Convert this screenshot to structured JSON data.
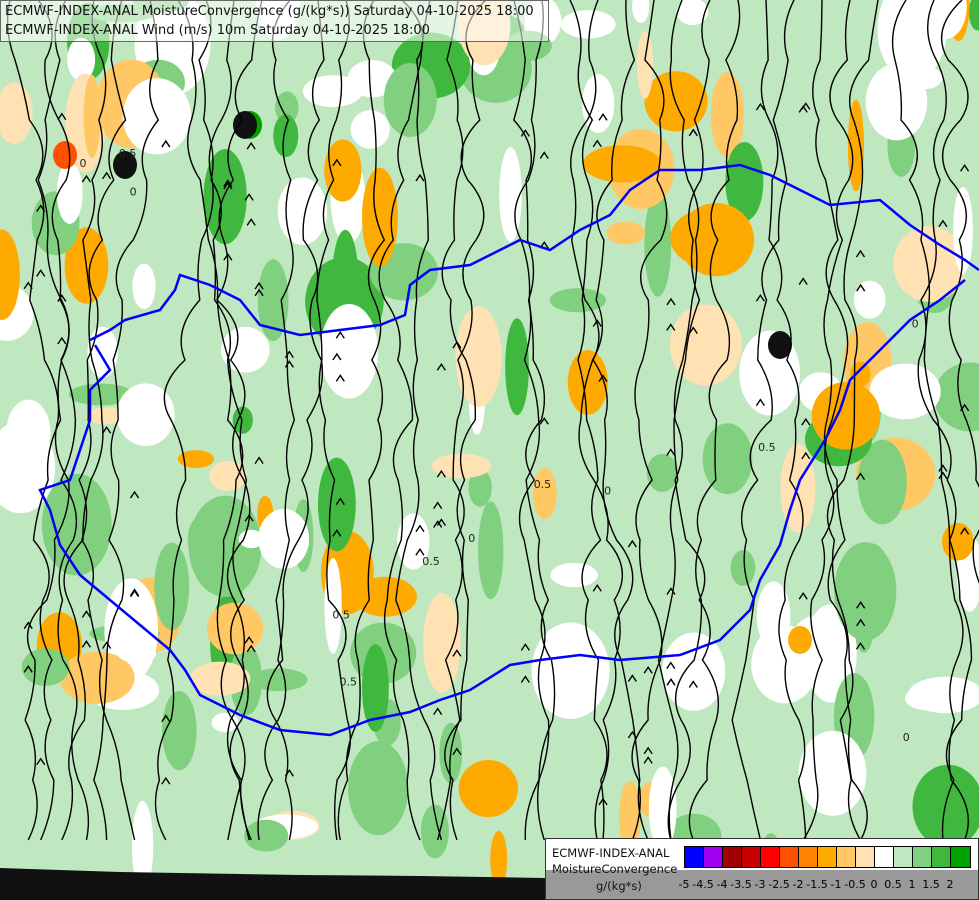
{
  "header": {
    "line1": "ECMWF-INDEX-ANAL MoistureConvergence (g/(kg*s)) Saturday 04-10-2025 18:00",
    "line2": "ECMWF-INDEX-ANAL Wind (m/s) 10m Saturday 04-10-2025 18:00"
  },
  "legend": {
    "model": "ECMWF-INDEX-ANAL",
    "parameter": "MoistureConvergence",
    "unit": "g/(kg*s)",
    "colors": [
      "#0000ff",
      "#a000f0",
      "#a00000",
      "#c80000",
      "#ff0000",
      "#ff5000",
      "#ff8200",
      "#ffaa00",
      "#ffc864",
      "#ffe2b4",
      "#ffffff",
      "#c0e8c0",
      "#80d080",
      "#40b840",
      "#00a000"
    ],
    "ticks": [
      "-5",
      "-4.5",
      "-4",
      "-3.5",
      "-3",
      "-2.5",
      "-2",
      "-1.5",
      "-1",
      "-0.5",
      "0",
      "0.5",
      "1",
      "1.5",
      "2"
    ]
  },
  "map": {
    "contour_labels": [
      "0.5",
      "0",
      "0.5",
      "0",
      "0.5",
      "0",
      "0.5",
      "0",
      "0.5",
      "0",
      "0.5",
      "0"
    ],
    "border_color": "#0000ff",
    "river_color": "#6080ff"
  }
}
